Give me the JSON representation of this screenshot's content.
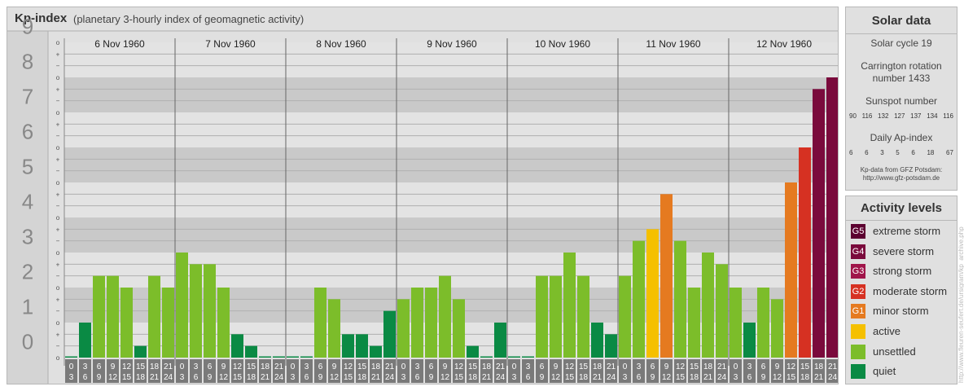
{
  "title": {
    "main": "Kp-index",
    "sub": "(planetary 3-hourly index of geomagnetic activity)"
  },
  "chart_data": {
    "type": "bar",
    "y_axis": {
      "range": [
        0,
        9
      ],
      "ticks": [
        "0",
        "1",
        "2",
        "3",
        "4",
        "5",
        "6",
        "7",
        "8",
        "9"
      ],
      "minor_marks": [
        "+",
        "o",
        "−"
      ]
    },
    "days": [
      {
        "label": "6 Nov 1960",
        "kp": [
          0.0,
          1.0,
          2.333,
          2.333,
          2.0,
          0.333,
          2.333,
          2.0
        ]
      },
      {
        "label": "7 Nov 1960",
        "kp": [
          3.0,
          2.667,
          2.667,
          2.0,
          0.667,
          0.333,
          0.0,
          0.0
        ]
      },
      {
        "label": "8 Nov 1960",
        "kp": [
          0.0,
          0.0,
          2.0,
          1.667,
          0.667,
          0.667,
          0.333,
          1.333
        ]
      },
      {
        "label": "9 Nov 1960",
        "kp": [
          1.667,
          2.0,
          2.0,
          2.333,
          1.667,
          0.333,
          0.0,
          1.0
        ]
      },
      {
        "label": "10 Nov 1960",
        "kp": [
          0.0,
          0.0,
          2.333,
          2.333,
          3.0,
          2.333,
          1.0,
          0.667
        ]
      },
      {
        "label": "11 Nov 1960",
        "kp": [
          2.333,
          3.333,
          3.667,
          4.667,
          3.333,
          2.0,
          3.0,
          2.667
        ]
      },
      {
        "label": "12 Nov 1960",
        "kp": [
          2.0,
          1.0,
          2.0,
          1.667,
          5.0,
          6.0,
          7.667,
          8.0
        ]
      }
    ],
    "interval_labels": [
      [
        "0",
        "3"
      ],
      [
        "3",
        "6"
      ],
      [
        "6",
        "9"
      ],
      [
        "9",
        "12"
      ],
      [
        "12",
        "15"
      ],
      [
        "15",
        "18"
      ],
      [
        "18",
        "21"
      ],
      [
        "21",
        "24"
      ]
    ]
  },
  "solar": {
    "title": "Solar data",
    "cycle": "Solar cycle 19",
    "carrington_line1": "Carrington rotation",
    "carrington_line2": "number 1433",
    "sunspot_title": "Sunspot number",
    "sunspot_values": [
      "90",
      "116",
      "132",
      "127",
      "137",
      "134",
      "116"
    ],
    "ap_title": "Daily Ap-index",
    "ap_values": [
      "6",
      "6",
      "3",
      "5",
      "6",
      "18",
      "67"
    ],
    "source_line1": "Kp-data from GFZ Potsdam:",
    "source_line2": "http://www.gfz-potsdam.de"
  },
  "levels": {
    "title": "Activity levels",
    "items": [
      {
        "code": "G5",
        "label": "extreme storm",
        "color": "#5c0030"
      },
      {
        "code": "G4",
        "label": "severe storm",
        "color": "#7a0a3c"
      },
      {
        "code": "G3",
        "label": "strong storm",
        "color": "#a0154a"
      },
      {
        "code": "G2",
        "label": "moderate storm",
        "color": "#d63122"
      },
      {
        "code": "G1",
        "label": "minor storm",
        "color": "#e57a20"
      },
      {
        "code": "",
        "label": "active",
        "color": "#f5c000"
      },
      {
        "code": "",
        "label": "unsettled",
        "color": "#7cbd2a"
      },
      {
        "code": "",
        "label": "quiet",
        "color": "#0a8a44"
      }
    ]
  },
  "credit": "http://www.fleuren-seufert.de/ursigram/kp_archive.php"
}
